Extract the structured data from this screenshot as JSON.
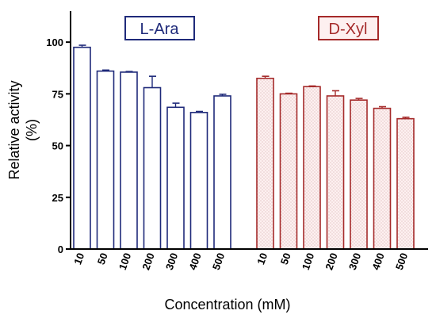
{
  "chart_data": {
    "type": "bar",
    "ylabel_line1": "Relative activity",
    "ylabel_line2": "(%)",
    "xlabel": "Concentration (mM)",
    "ylim": [
      0,
      115
    ],
    "yticks": [
      0,
      25,
      50,
      75,
      100
    ],
    "grid": false,
    "groups": [
      {
        "name": "L-Ara",
        "color": "#1f2a7a",
        "fill": "#ffffff",
        "pattern": "none",
        "categories": [
          "10",
          "50",
          "100",
          "200",
          "300",
          "400",
          "500"
        ],
        "values": [
          97.5,
          86,
          85.5,
          78,
          68.5,
          66,
          74
        ],
        "errors": [
          1,
          0.5,
          0.3,
          5.5,
          2,
          0.5,
          0.8
        ]
      },
      {
        "name": "D-Xyl",
        "color": "#a52a2a",
        "fill": "#fdf0f0",
        "pattern": "dots",
        "categories": [
          "10",
          "50",
          "100",
          "200",
          "300",
          "400",
          "500"
        ],
        "values": [
          82.5,
          75,
          78.5,
          74,
          72,
          68,
          63
        ],
        "errors": [
          1,
          0.3,
          0.3,
          2.5,
          0.8,
          0.8,
          0.7
        ]
      }
    ]
  }
}
